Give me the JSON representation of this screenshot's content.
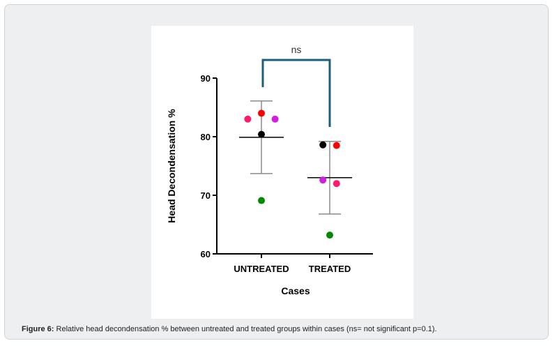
{
  "chart_data": {
    "type": "scatter",
    "categories": [
      "UNTREATED",
      "TREATED"
    ],
    "xlabel": "Cases",
    "ylabel": "Head Decondensation %",
    "ylim": [
      60,
      90
    ],
    "yticks": [
      60,
      70,
      80,
      90
    ],
    "grid": false,
    "series": [
      {
        "color": "#ff1a6e",
        "values": [
          83.0,
          72.0
        ]
      },
      {
        "color": "#ff0000",
        "values": [
          84.0,
          78.5
        ]
      },
      {
        "color": "#d11fe0",
        "values": [
          83.0,
          72.6
        ]
      },
      {
        "color": "#000000",
        "values": [
          80.4,
          78.6
        ]
      },
      {
        "color": "#008a00",
        "values": [
          69.1,
          63.2
        ]
      }
    ],
    "point_x_offsets": [
      [
        -0.2,
        0.1
      ],
      [
        0.0,
        0.1
      ],
      [
        0.2,
        -0.1
      ],
      [
        0.0,
        -0.1
      ],
      [
        0.0,
        0.0
      ]
    ],
    "summary": [
      {
        "category": "UNTREATED",
        "mean": 79.9,
        "upper": 86.1,
        "lower": 73.7
      },
      {
        "category": "TREATED",
        "mean": 73.0,
        "upper": 79.2,
        "lower": 66.8
      }
    ],
    "significance": {
      "label": "ns",
      "from": "UNTREATED",
      "to": "TREATED"
    },
    "colors": {
      "bracket": "#1b5e7e",
      "errorbar": "#8a8a8a",
      "mean": "#000000"
    }
  },
  "caption": {
    "label": "Figure 6:",
    "text": " Relative head decondensation % between untreated and treated groups within cases (ns= not significant p=0.1)."
  }
}
